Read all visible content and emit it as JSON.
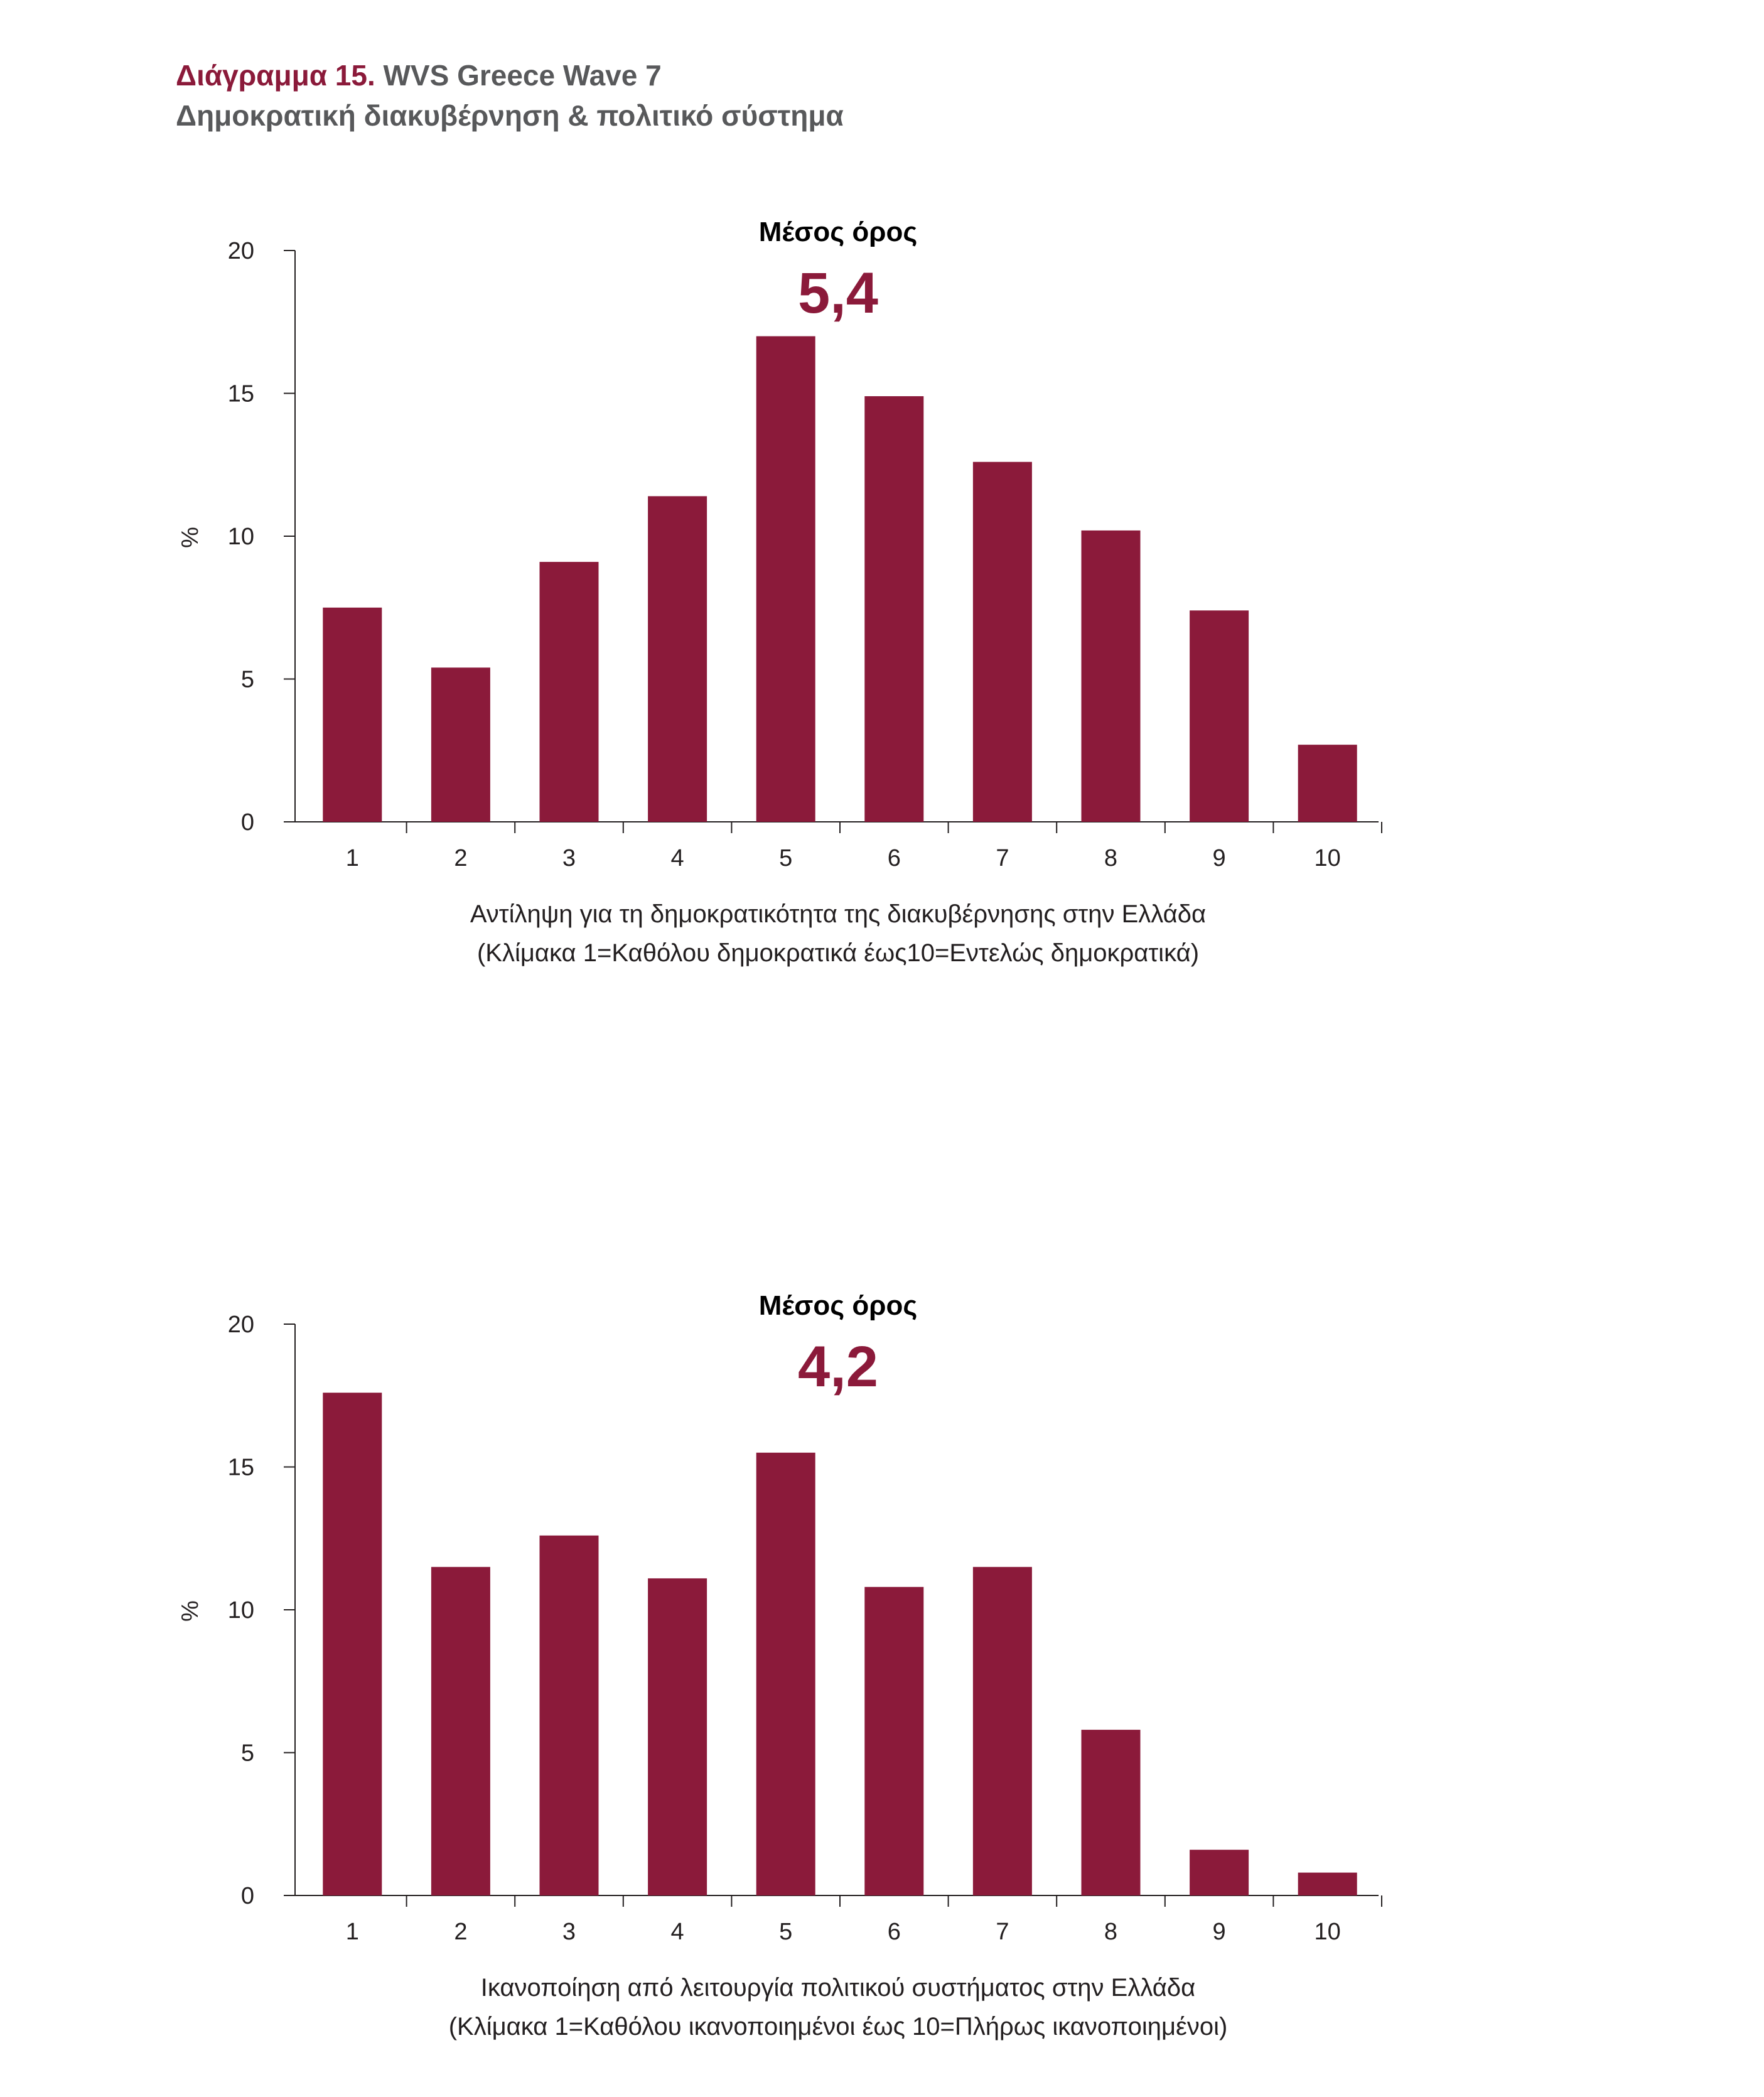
{
  "header": {
    "figure_number": "Διάγραμμα 15.",
    "survey": "WVS Greece Wave 7",
    "subtitle": "Δημοκρατική διακυβέρνηση & πολιτικό σύστημα"
  },
  "colors": {
    "bar": "#8b1a3a",
    "accent": "#8b1a3a",
    "subtitle": "#58595b"
  },
  "chart_data": [
    {
      "type": "bar",
      "categories": [
        "1",
        "2",
        "3",
        "4",
        "5",
        "6",
        "7",
        "8",
        "9",
        "10"
      ],
      "values": [
        7.5,
        5.4,
        9.1,
        11.4,
        17.0,
        14.9,
        12.6,
        10.2,
        7.4,
        2.7
      ],
      "ylabel": "%",
      "ylim": [
        0,
        20
      ],
      "yticks": [
        "0",
        "5",
        "10",
        "15",
        "20"
      ],
      "xlabel_line1": "Αντίληψη για τη δημοκρατικότητα της διακυβέρνησης στην Ελλάδα",
      "xlabel_line2": "(Κλίμακα 1=Καθόλου δημοκρατικά έως10=Εντελώς δημοκρατικά)",
      "mean_label": "Μέσος όρος",
      "mean_value": "5,4",
      "grid": false,
      "legend": "none"
    },
    {
      "type": "bar",
      "categories": [
        "1",
        "2",
        "3",
        "4",
        "5",
        "6",
        "7",
        "8",
        "9",
        "10"
      ],
      "values": [
        17.6,
        11.5,
        12.6,
        11.1,
        15.5,
        10.8,
        11.5,
        5.8,
        1.6,
        0.8
      ],
      "ylabel": "%",
      "ylim": [
        0,
        20
      ],
      "yticks": [
        "0",
        "5",
        "10",
        "15",
        "20"
      ],
      "xlabel_line1": "Ικανοποίηση από λειτουργία πολιτικού συστήματος στην Ελλάδα",
      "xlabel_line2": "(Κλίμακα 1=Καθόλου ικανοποιημένοι έως 10=Πλήρως ικανοποιημένοι)",
      "mean_label": "Μέσος όρος",
      "mean_value": "4,2",
      "grid": false,
      "legend": "none"
    }
  ]
}
